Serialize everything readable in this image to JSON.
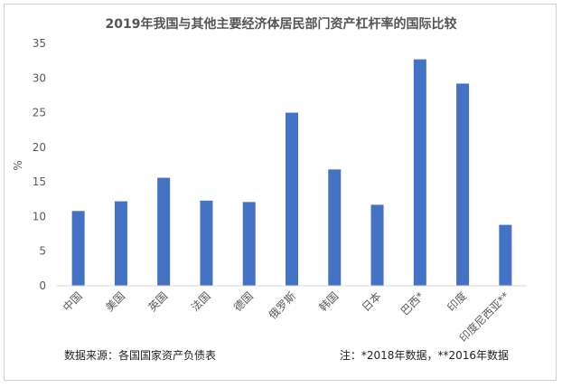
{
  "chart_data": {
    "type": "bar",
    "title": "2019年我国与其他主要经济体居民部门资产杠杆率的国际比较",
    "ylabel": "%",
    "ylim": [
      0,
      35
    ],
    "yticks": [
      "0",
      "5",
      "10",
      "15",
      "20",
      "25",
      "30",
      "35"
    ],
    "categories": [
      "中国",
      "美国",
      "英国",
      "法国",
      "德国",
      "俄罗斯",
      "韩国",
      "日本",
      "巴西*",
      "印度",
      "印度尼西亚**"
    ],
    "values": [
      10.8,
      12.2,
      15.6,
      12.3,
      12.1,
      25.0,
      16.8,
      11.7,
      32.7,
      29.2,
      8.8
    ],
    "bar_color": "#4472c4",
    "grid": false,
    "source_note": "数据来源：各国国家资产负债表",
    "footnote": "注：*2018年数据，**2016年数据"
  }
}
